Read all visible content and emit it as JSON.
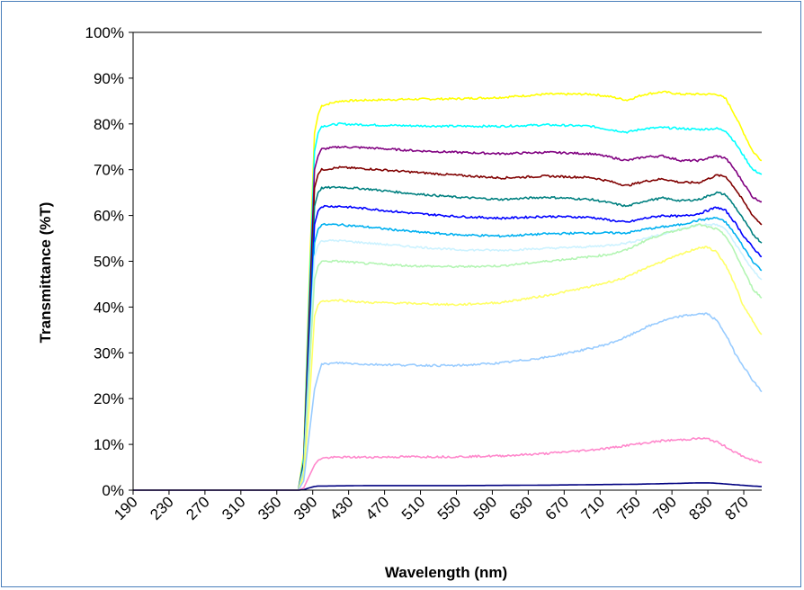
{
  "chart_data": {
    "type": "line",
    "title": "",
    "xlabel": "Wavelength (nm)",
    "ylabel": "Transmittance (%T)",
    "xlim": [
      190,
      890
    ],
    "ylim": [
      0,
      100
    ],
    "x_ticks": [
      190,
      230,
      270,
      310,
      350,
      390,
      430,
      470,
      510,
      550,
      590,
      630,
      670,
      710,
      750,
      790,
      830,
      870
    ],
    "x_tick_labels": [
      "190",
      "230",
      "270",
      "310",
      "350",
      "390",
      "430",
      "470",
      "510",
      "550",
      "590",
      "630",
      "670",
      "710",
      "750",
      "790",
      "830",
      "870"
    ],
    "y_ticks": [
      0,
      10,
      20,
      30,
      40,
      50,
      60,
      70,
      80,
      90,
      100
    ],
    "y_tick_labels": [
      "0%",
      "10%",
      "20%",
      "30%",
      "40%",
      "50%",
      "60%",
      "70%",
      "80%",
      "90%",
      "100%"
    ],
    "grid": false,
    "legend": "none",
    "series": [
      {
        "color": "#808080",
        "x": [
          190,
          890
        ],
        "y": [
          100,
          100
        ]
      },
      {
        "color": "#ffff00",
        "x": [
          190,
          374,
          380,
          386,
          392,
          396,
          400,
          420,
          450,
          500,
          550,
          600,
          650,
          700,
          720,
          740,
          760,
          780,
          800,
          820,
          840,
          850,
          860,
          870,
          880,
          890
        ],
        "y": [
          0,
          0,
          8,
          45,
          78,
          82,
          84,
          85,
          85.2,
          85.4,
          85.5,
          85.8,
          86.5,
          86.5,
          86,
          85.2,
          86.5,
          87,
          86.5,
          86.5,
          86.5,
          85.5,
          82,
          78,
          74,
          72
        ]
      },
      {
        "color": "#00ffff",
        "x": [
          190,
          374,
          380,
          386,
          392,
          396,
          400,
          420,
          450,
          500,
          550,
          600,
          650,
          700,
          720,
          740,
          760,
          780,
          800,
          820,
          840,
          850,
          860,
          870,
          880,
          890
        ],
        "y": [
          0,
          0,
          7,
          42,
          74,
          78,
          79.5,
          80,
          79.8,
          79.6,
          79.5,
          79.5,
          79.8,
          79.5,
          78.8,
          78.2,
          79,
          79.2,
          79,
          78.8,
          79,
          78.5,
          76,
          73,
          70,
          69
        ]
      },
      {
        "color": "#800080",
        "x": [
          190,
          374,
          380,
          386,
          392,
          396,
          400,
          420,
          450,
          500,
          550,
          600,
          650,
          700,
          720,
          740,
          760,
          780,
          800,
          820,
          840,
          850,
          860,
          870,
          880,
          890
        ],
        "y": [
          0,
          0,
          6,
          38,
          70,
          73,
          74.5,
          75,
          74.8,
          74.2,
          73.8,
          73.5,
          73.8,
          73.5,
          72.8,
          72,
          72.8,
          73,
          72,
          72,
          73,
          72.5,
          70,
          67,
          64,
          63
        ]
      },
      {
        "color": "#800000",
        "x": [
          190,
          374,
          380,
          386,
          392,
          396,
          400,
          420,
          450,
          500,
          550,
          600,
          650,
          700,
          720,
          740,
          760,
          780,
          800,
          820,
          840,
          850,
          860,
          870,
          880,
          890
        ],
        "y": [
          0,
          0,
          6,
          36,
          66,
          69,
          70,
          70.5,
          70.2,
          69.5,
          68.8,
          68.2,
          68.6,
          68.3,
          67.5,
          66.5,
          67.5,
          68,
          67.2,
          67.2,
          68.8,
          68.5,
          66,
          63,
          60,
          58
        ]
      },
      {
        "color": "#008080",
        "x": [
          190,
          374,
          380,
          386,
          392,
          396,
          400,
          420,
          450,
          500,
          550,
          600,
          650,
          700,
          720,
          740,
          760,
          780,
          800,
          820,
          840,
          850,
          860,
          870,
          880,
          890
        ],
        "y": [
          0,
          0,
          5.5,
          33,
          62,
          65,
          66,
          66.2,
          65.8,
          64.8,
          64,
          63.5,
          64,
          63.5,
          62.8,
          62,
          63.2,
          63.8,
          63.2,
          63.5,
          65,
          64.5,
          62,
          59,
          56,
          54
        ]
      },
      {
        "color": "#0000ff",
        "x": [
          190,
          374,
          380,
          386,
          392,
          396,
          400,
          420,
          450,
          500,
          550,
          600,
          650,
          700,
          720,
          740,
          760,
          780,
          800,
          820,
          840,
          850,
          860,
          870,
          880,
          890
        ],
        "y": [
          0,
          0,
          5,
          31,
          58,
          61,
          62,
          62,
          61.5,
          60.5,
          59.8,
          59.4,
          59.8,
          59.6,
          59,
          58.5,
          59.4,
          60,
          59.8,
          60.4,
          61.8,
          61,
          58.5,
          55.5,
          53,
          51
        ]
      },
      {
        "color": "#00b0f0",
        "x": [
          190,
          374,
          380,
          386,
          392,
          396,
          400,
          420,
          450,
          500,
          550,
          600,
          650,
          700,
          720,
          740,
          760,
          780,
          800,
          820,
          840,
          850,
          860,
          870,
          880,
          890
        ],
        "y": [
          0,
          0,
          5,
          29,
          54,
          57,
          58,
          58,
          57.5,
          56.5,
          55.8,
          55.5,
          56,
          56.2,
          56.2,
          56.2,
          57,
          57.5,
          58,
          59,
          59.5,
          58.5,
          56,
          53,
          50,
          48
        ]
      },
      {
        "color": "#ccf2ff",
        "x": [
          190,
          374,
          380,
          386,
          392,
          396,
          400,
          420,
          450,
          500,
          550,
          600,
          650,
          700,
          720,
          740,
          760,
          780,
          800,
          820,
          840,
          850,
          860,
          870,
          880,
          890
        ],
        "y": [
          0,
          0,
          4.5,
          27,
          51,
          53.5,
          54.5,
          54.5,
          54,
          53.2,
          52.5,
          52.4,
          52.8,
          53.2,
          53.5,
          54,
          55,
          56,
          57,
          58,
          58,
          57,
          54,
          51,
          48,
          46
        ]
      },
      {
        "color": "#b3f5b3",
        "x": [
          190,
          374,
          380,
          386,
          392,
          396,
          400,
          420,
          450,
          500,
          550,
          600,
          650,
          700,
          720,
          740,
          760,
          780,
          800,
          820,
          840,
          850,
          860,
          870,
          880,
          890
        ],
        "y": [
          0,
          0,
          4,
          25,
          46,
          49,
          50,
          50,
          49.5,
          49,
          48.8,
          49,
          50,
          51,
          51.5,
          52.5,
          54.5,
          56,
          57,
          58,
          57,
          55.5,
          52,
          48,
          44,
          42
        ]
      },
      {
        "color": "#ffff66",
        "x": [
          190,
          374,
          380,
          386,
          392,
          396,
          400,
          420,
          450,
          500,
          550,
          600,
          650,
          700,
          720,
          740,
          760,
          780,
          800,
          820,
          830,
          840,
          850,
          860,
          870,
          880,
          890
        ],
        "y": [
          0,
          0,
          3,
          18,
          38,
          40.5,
          41.3,
          41.5,
          41,
          40.8,
          40.5,
          41,
          42.5,
          44.5,
          45.5,
          46.5,
          48.5,
          50,
          51.5,
          53,
          53,
          52,
          49,
          45,
          40,
          37,
          34
        ]
      },
      {
        "color": "#99ccff",
        "x": [
          190,
          374,
          380,
          386,
          392,
          396,
          400,
          420,
          450,
          500,
          550,
          600,
          650,
          700,
          720,
          740,
          760,
          780,
          800,
          820,
          830,
          840,
          850,
          860,
          870,
          880,
          890
        ],
        "y": [
          0,
          0,
          2,
          12,
          22,
          25,
          27.5,
          27.8,
          27.5,
          27.3,
          27.2,
          27.8,
          29,
          31,
          32,
          33.5,
          35.5,
          37,
          38,
          38.5,
          38.5,
          37,
          34,
          30,
          27,
          24,
          21.5
        ]
      },
      {
        "color": "#ff88cc",
        "x": [
          190,
          374,
          380,
          386,
          392,
          396,
          400,
          420,
          450,
          500,
          550,
          600,
          650,
          700,
          720,
          740,
          760,
          780,
          800,
          820,
          830,
          840,
          850,
          860,
          870,
          880,
          890
        ],
        "y": [
          0,
          0,
          0.5,
          3,
          5.5,
          6.5,
          7,
          7.2,
          7.2,
          7.3,
          7.3,
          7.5,
          8,
          8.8,
          9.2,
          9.8,
          10.3,
          10.8,
          11,
          11.3,
          11.2,
          10.5,
          9.5,
          8.3,
          7.3,
          6.5,
          6
        ]
      },
      {
        "color": "#000080",
        "x": [
          190,
          374,
          380,
          386,
          392,
          396,
          400,
          450,
          550,
          650,
          750,
          800,
          820,
          830,
          840,
          860,
          880,
          890
        ],
        "y": [
          0,
          0,
          0.1,
          0.5,
          0.8,
          0.9,
          0.9,
          1,
          1,
          1.1,
          1.3,
          1.5,
          1.6,
          1.6,
          1.5,
          1.2,
          0.9,
          0.8
        ]
      }
    ]
  }
}
